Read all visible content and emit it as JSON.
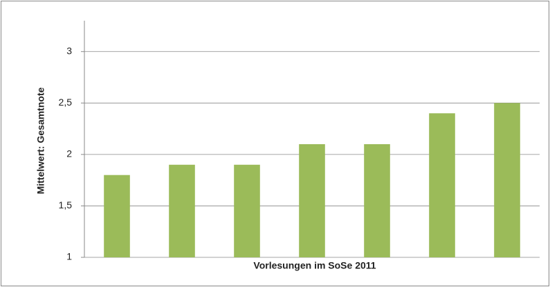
{
  "chart_data": {
    "type": "bar",
    "x_label": "Vorlesungen im SoSe 2011",
    "y_label": "Mittelwert: Gesamtnote",
    "categories": [
      null,
      null,
      null,
      null,
      null,
      null,
      null
    ],
    "values": [
      1.8,
      1.9,
      1.9,
      2.1,
      2.1,
      2.4,
      2.5
    ],
    "color": "#9bbb59",
    "ylim": [
      1,
      3.3
    ],
    "yticks": [
      1,
      {
        "value": 1.5,
        "label": "1,5"
      },
      2,
      {
        "value": 2.5,
        "label": "2,5"
      },
      3
    ],
    "grid": true
  }
}
